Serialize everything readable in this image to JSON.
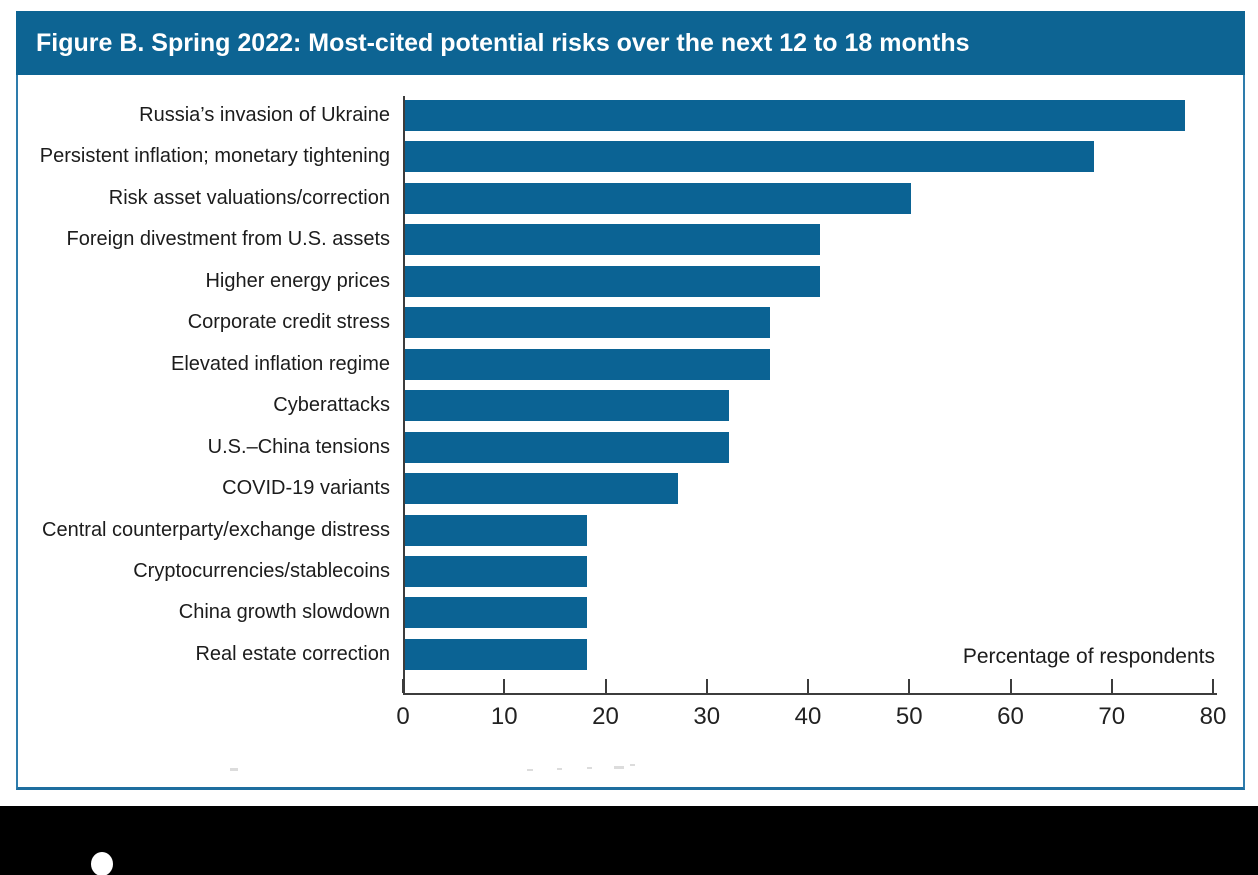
{
  "header": {
    "title": "Figure B. Spring 2022: Most-cited potential risks over the next 12 to 18 months"
  },
  "chart_data": {
    "type": "bar",
    "orientation": "horizontal",
    "title": "Figure B. Spring 2022: Most-cited potential risks over the next 12 to 18 months",
    "xlabel": "Percentage of respondents",
    "ylabel": "",
    "xlim": [
      0,
      80
    ],
    "xticks": [
      0,
      10,
      20,
      30,
      40,
      50,
      60,
      70,
      80
    ],
    "grid": false,
    "legend_position": "none",
    "bar_color": "#0b6394",
    "categories": [
      "Russia’s invasion of Ukraine",
      "Persistent inflation; monetary tightening",
      "Risk asset valuations/correction",
      "Foreign divestment from U.S. assets",
      "Higher energy prices",
      "Corporate credit stress",
      "Elevated inflation regime",
      "Cyberattacks",
      "U.S.–China tensions",
      "COVID-19 variants",
      "Central counterparty/exchange distress",
      "Cryptocurrencies/stablecoins",
      "China growth slowdown",
      "Real estate correction"
    ],
    "values": [
      77,
      68,
      50,
      41,
      41,
      36,
      36,
      32,
      32,
      27,
      18,
      18,
      18,
      18
    ]
  },
  "colors": {
    "title_bar_background": "#0d6493",
    "title_text": "#ffffff",
    "bar_fill": "#0b6394",
    "box_border": "#2e7cac",
    "axis_line": "#3c3c3c",
    "footer_background": "#000000"
  }
}
